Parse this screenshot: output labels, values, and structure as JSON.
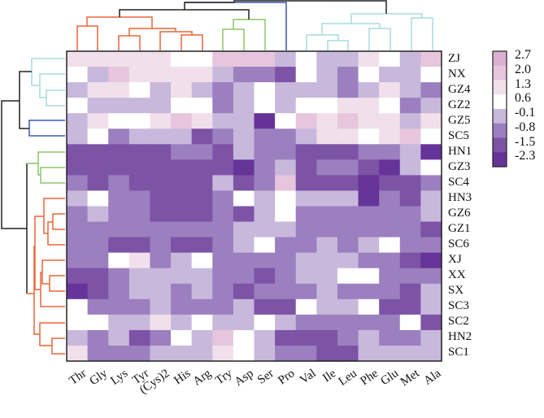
{
  "chart_data": {
    "type": "heatmap",
    "columns": [
      "Thr",
      "Gly",
      "Lys",
      "Tyr",
      "(Cys)2",
      "His",
      "Arg",
      "Try",
      "Asp",
      "Ser",
      "Pro",
      "Val",
      "Ile",
      "Leu",
      "Phe",
      "Glu",
      "Met",
      "Ala"
    ],
    "rows": [
      "ZJ",
      "NX",
      "GZ4",
      "GZ2",
      "GZ5",
      "SC5",
      "HN1",
      "GZ3",
      "SC4",
      "HN3",
      "GZ6",
      "GZ1",
      "SC6",
      "XJ",
      "XX",
      "SX",
      "SC3",
      "SC2",
      "HN2",
      "SC1"
    ],
    "values": [
      [
        1.3,
        1.3,
        1.3,
        1.3,
        1.3,
        0.6,
        0.6,
        2.0,
        2.0,
        2.0,
        -0.1,
        0.6,
        -0.1,
        -0.1,
        1.3,
        0.6,
        -0.1,
        2.0
      ],
      [
        0.6,
        -0.1,
        2.0,
        1.3,
        1.3,
        1.3,
        1.3,
        -0.1,
        -0.8,
        -0.8,
        -1.5,
        0.6,
        -0.1,
        -0.8,
        0.6,
        -0.1,
        -0.1,
        0.6
      ],
      [
        -0.1,
        1.3,
        1.3,
        0.6,
        -0.1,
        1.3,
        -0.1,
        -0.8,
        -0.1,
        0.6,
        -0.1,
        -0.1,
        -0.1,
        -0.8,
        -0.1,
        1.3,
        -0.1,
        -0.8
      ],
      [
        0.6,
        -0.1,
        -0.1,
        -0.1,
        -0.1,
        0.6,
        0.6,
        -0.8,
        -0.1,
        0.6,
        -0.1,
        0.6,
        0.6,
        1.3,
        1.3,
        0.6,
        -0.8,
        -0.1
      ],
      [
        -0.1,
        1.3,
        0.6,
        0.6,
        1.3,
        2.0,
        1.3,
        -0.1,
        -0.1,
        -2.3,
        0.6,
        2.0,
        1.3,
        2.0,
        1.3,
        1.3,
        -0.1,
        1.3
      ],
      [
        -0.1,
        0.6,
        -0.8,
        -0.1,
        -0.1,
        -0.1,
        -1.5,
        -0.8,
        -0.1,
        -0.8,
        -0.8,
        -0.1,
        1.3,
        1.3,
        0.6,
        1.3,
        2.0,
        0.6
      ],
      [
        -1.5,
        -1.5,
        -1.5,
        -1.5,
        -1.5,
        -0.8,
        -0.8,
        -1.5,
        -0.1,
        -0.8,
        -0.8,
        -1.5,
        -1.5,
        -1.5,
        -0.8,
        -0.8,
        -0.1,
        -2.3
      ],
      [
        -1.5,
        -1.5,
        -1.5,
        -1.5,
        -1.5,
        -1.5,
        -1.5,
        -1.5,
        -2.3,
        -0.8,
        -0.1,
        -1.5,
        -0.8,
        -0.8,
        -1.5,
        -2.3,
        -0.1,
        0.6
      ],
      [
        -0.8,
        -1.5,
        -0.8,
        -1.5,
        -1.5,
        -1.5,
        -1.5,
        -0.1,
        -1.5,
        -0.8,
        2.0,
        -1.5,
        -1.5,
        -1.5,
        -2.3,
        -1.5,
        -1.5,
        -0.8
      ],
      [
        -0.1,
        0.6,
        -0.8,
        -0.8,
        -1.5,
        -1.5,
        -1.5,
        -0.8,
        0.6,
        -0.1,
        0.6,
        -0.1,
        -0.1,
        -0.1,
        -2.3,
        -0.8,
        -1.5,
        -0.1
      ],
      [
        -0.8,
        -0.1,
        -0.8,
        -0.8,
        -1.5,
        -1.5,
        -1.5,
        -0.8,
        -1.5,
        -0.1,
        0.6,
        -0.8,
        -0.8,
        -0.8,
        -0.8,
        -0.8,
        -0.8,
        -0.1
      ],
      [
        -0.8,
        -0.8,
        -0.8,
        -0.8,
        -0.8,
        -0.8,
        -0.8,
        -0.8,
        -0.1,
        -0.1,
        -0.1,
        -0.8,
        -0.8,
        -0.8,
        -0.8,
        -0.8,
        -0.8,
        -1.5
      ],
      [
        -0.8,
        -0.8,
        -1.5,
        -1.5,
        -0.8,
        -1.5,
        -1.5,
        -0.8,
        -0.1,
        0.6,
        -0.8,
        -0.8,
        -0.1,
        -0.8,
        -0.1,
        0.6,
        -0.8,
        -0.8
      ],
      [
        -0.8,
        -0.8,
        0.6,
        1.3,
        -0.8,
        -0.1,
        0.6,
        -0.8,
        -0.8,
        -0.8,
        -0.8,
        -0.1,
        -0.1,
        -0.1,
        -0.8,
        -0.8,
        -1.5,
        -2.3
      ],
      [
        -1.5,
        -1.5,
        -0.8,
        -0.1,
        -0.1,
        -0.1,
        -0.1,
        -0.8,
        -0.8,
        -1.5,
        -0.8,
        -0.1,
        -0.1,
        0.6,
        0.6,
        -0.8,
        -0.8,
        -0.8
      ],
      [
        -2.3,
        -1.5,
        -0.8,
        -0.1,
        -0.1,
        -0.8,
        -0.1,
        -0.8,
        -1.5,
        -0.8,
        -0.8,
        -0.8,
        -0.1,
        -0.8,
        -0.8,
        -0.8,
        -1.5,
        -0.1
      ],
      [
        0.6,
        -0.8,
        -0.8,
        -0.8,
        -0.1,
        -0.8,
        -0.8,
        -0.8,
        -0.1,
        -1.5,
        -1.5,
        0.6,
        -0.1,
        -0.1,
        0.6,
        -1.5,
        -1.5,
        -0.1
      ],
      [
        0.6,
        0.6,
        -0.1,
        -0.1,
        1.3,
        -0.1,
        0.6,
        -0.1,
        -0.1,
        0.6,
        -0.1,
        -0.8,
        -0.8,
        -0.8,
        -0.8,
        -0.8,
        0.6,
        -1.5
      ],
      [
        -0.1,
        -0.8,
        -0.1,
        -1.5,
        -0.8,
        0.6,
        -0.1,
        2.0,
        0.6,
        -0.1,
        -1.5,
        -1.5,
        -1.5,
        -0.8,
        -0.1,
        -0.8,
        -0.8,
        -0.1
      ],
      [
        1.3,
        -0.8,
        -0.8,
        -0.8,
        -0.1,
        -0.1,
        -0.1,
        1.3,
        0.6,
        -0.1,
        -0.8,
        -0.8,
        -1.5,
        -1.5,
        -0.1,
        -0.1,
        -0.1,
        -0.1
      ]
    ],
    "legend": {
      "ticks": [
        "2.7",
        "2.0",
        "1.3",
        "0.6",
        "-0.1",
        "-0.8",
        "-1.5",
        "-2.3"
      ],
      "colors": [
        "#dcb0d2",
        "#e6c5dd",
        "#f1e0eb",
        "#ffffff",
        "#c8b8dc",
        "#9b7fbf",
        "#7c53a5",
        "#663399"
      ],
      "placement": "right"
    },
    "dendrograms": {
      "rows": true,
      "columns": true
    },
    "cluster_colors": [
      "#e8663a",
      "#8cc66a",
      "#3858b0",
      "#a8dce0",
      "#222222"
    ]
  }
}
